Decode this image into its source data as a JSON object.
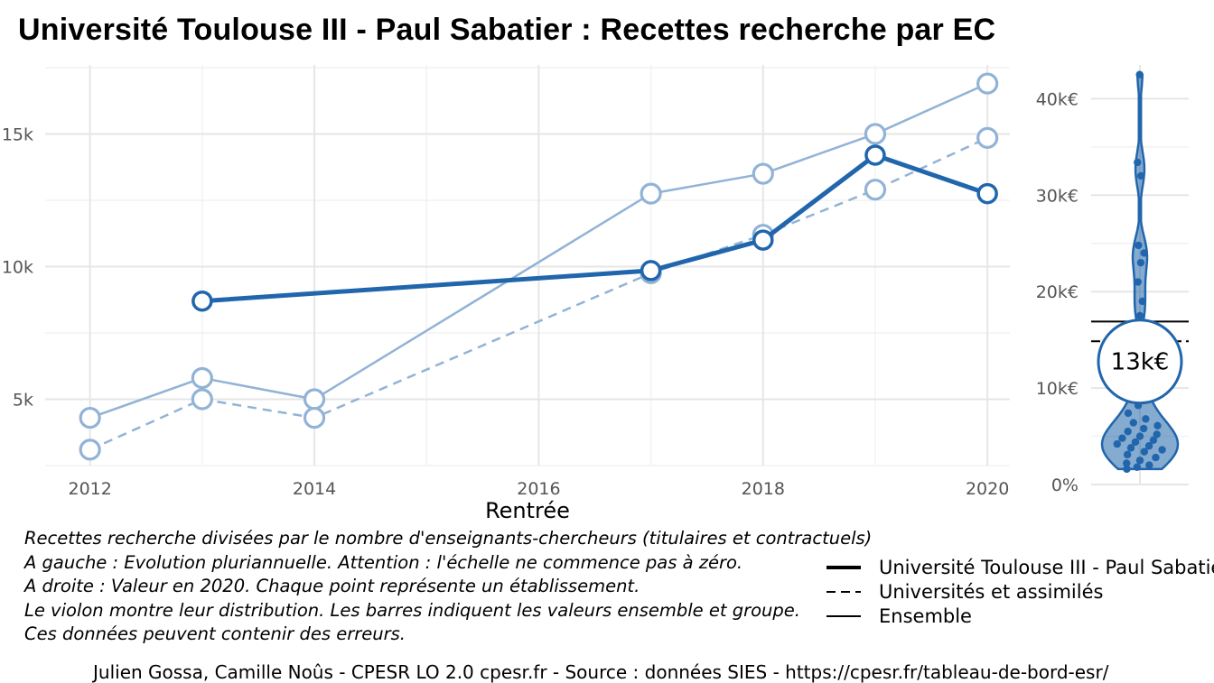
{
  "title": "Université Toulouse III - Paul Sabatier  :  Recettes recherche par EC",
  "chart_data": [
    {
      "type": "line",
      "xlabel": "Rentrée",
      "x_ticks": [
        "2012",
        "2014",
        "2016",
        "2018",
        "2020"
      ],
      "y_ticks": [
        "5k",
        "10k",
        "15k"
      ],
      "xlim": [
        2011.6,
        2020.2
      ],
      "ylim": [
        2500,
        17600
      ],
      "grid": true,
      "series": [
        {
          "name": "Université Toulouse III - Paul Sabatier",
          "style": "solid-bold",
          "color": "#2166ac",
          "x": [
            2013,
            2017,
            2018,
            2019,
            2020
          ],
          "y": [
            8700,
            9850,
            11000,
            14200,
            12750
          ]
        },
        {
          "name": "Universités et assimilés",
          "style": "dashed",
          "color": "#92b3d6",
          "x": [
            2012,
            2013,
            2014,
            2017,
            2018,
            2019,
            2020
          ],
          "y": [
            3100,
            5000,
            4300,
            9750,
            11200,
            12900,
            14850
          ]
        },
        {
          "name": "Ensemble",
          "style": "solid-thin",
          "color": "#92b3d6",
          "x": [
            2012,
            2013,
            2014,
            2017,
            2018,
            2019,
            2020
          ],
          "y": [
            4300,
            5800,
            5000,
            12750,
            13500,
            15000,
            16900
          ]
        }
      ]
    },
    {
      "type": "violin",
      "y_ticks": [
        "0%",
        "10k€",
        "20k€",
        "30k€",
        "40k€"
      ],
      "ylim": [
        0,
        43500
      ],
      "value_label": "13k€",
      "value": 12750,
      "reference_lines": [
        {
          "name": "Ensemble",
          "value": 16900,
          "style": "solid"
        },
        {
          "name": "Universités et assimilés",
          "value": 14850,
          "style": "dashed"
        }
      ],
      "points": [
        1600,
        1800,
        2000,
        2200,
        2500,
        2800,
        3100,
        3400,
        3600,
        3800,
        4000,
        4200,
        4400,
        4600,
        4800,
        5000,
        5200,
        5500,
        5800,
        6100,
        6400,
        6800,
        7400,
        8200,
        9200,
        10500,
        17500,
        19000,
        21000,
        23000,
        24000,
        24800,
        32000,
        33400,
        42500
      ],
      "color": "#2166ac"
    }
  ],
  "caption_lines": [
    "Recettes recherche divisées par le nombre d'enseignants-chercheurs (titulaires et contractuels)",
    "A gauche : Evolution pluriannuelle. Attention : l'échelle ne commence pas à zéro.",
    "A droite : Valeur en 2020. Chaque point représente un établissement.",
    "Le violon montre leur distribution. Les barres indiquent les valeurs ensemble et groupe.",
    "Ces données peuvent contenir des erreurs."
  ],
  "legend": [
    {
      "label": "Université Toulouse III - Paul Sabatier",
      "style": "solid-bold"
    },
    {
      "label": "Universités et assimilés",
      "style": "dashed"
    },
    {
      "label": "Ensemble",
      "style": "solid-thin"
    }
  ],
  "credit": "Julien Gossa, Camille Noûs - CPESR LO 2.0 cpesr.fr - Source : données SIES - https://cpesr.fr/tableau-de-bord-esr/"
}
